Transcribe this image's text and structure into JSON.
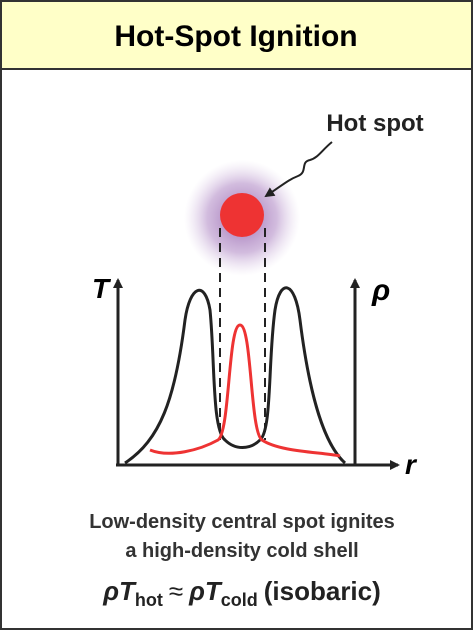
{
  "header": {
    "title": "Hot-Spot Ignition"
  },
  "diagram": {
    "hot_spot_label": "Hot spot",
    "left_axis_label": "T",
    "right_axis_label": "ρ",
    "x_axis_label": "r"
  },
  "caption": {
    "lines": [
      "Low-density central spot ignites",
      "a high-density cold shell"
    ]
  },
  "formula": {
    "left": "ρT",
    "left_sub": "hot",
    "relation": "≈",
    "right": "ρT",
    "right_sub": "cold",
    "note": "(isobaric)"
  }
}
